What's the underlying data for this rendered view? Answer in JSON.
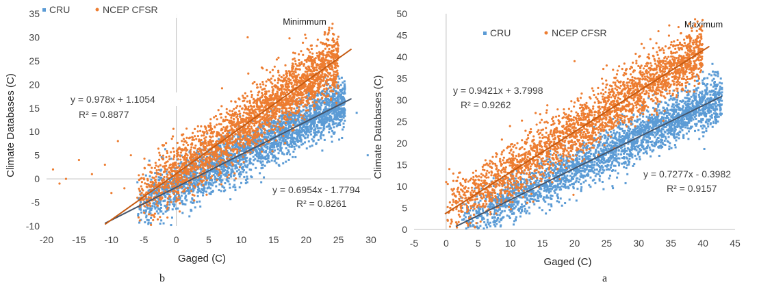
{
  "colors": {
    "cru": "#5b9bd5",
    "ncep": "#ed7d31",
    "cru_trend": "#44546a",
    "ncep_trend": "#c55a11",
    "axis": "#bfbfbf",
    "text": "#404040"
  },
  "chart_data": [
    {
      "type": "scatter",
      "panel_label": "b",
      "title": "Minimmum",
      "xlabel": "Gaged (C)",
      "ylabel": "Climate Databases (C)",
      "xlim": [
        -20,
        30
      ],
      "ylim": [
        -10,
        35
      ],
      "xticks": [
        -20,
        -15,
        -10,
        -5,
        0,
        5,
        10,
        15,
        20,
        25,
        30
      ],
      "yticks": [
        -10,
        -5,
        0,
        5,
        10,
        15,
        20,
        25,
        30,
        35
      ],
      "grid": false,
      "axes_cross_at_zero": true,
      "legend_position": "top-left",
      "series": [
        {
          "name": "CRU",
          "color": "#5b9bd5",
          "marker": "square",
          "trendline": {
            "slope": 0.6954,
            "intercept": -1.7794,
            "x_range": [
              -11,
              27
            ],
            "equation": "y = 0.6954x - 1.7794",
            "r2": "R² = 0.8261"
          },
          "approx_point_cloud": {
            "x_range": [
              -6,
              26
            ],
            "scatter_spread": 2.6
          },
          "sample_points": [
            [
              29.5,
              5
            ],
            [
              27.8,
              14
            ]
          ]
        },
        {
          "name": "NCEP CFSR",
          "color": "#ed7d31",
          "marker": "circle",
          "trendline": {
            "slope": 0.978,
            "intercept": 1.1054,
            "x_range": [
              -11,
              27
            ],
            "equation": "y = 0.978x + 1.1054",
            "r2": "R² = 0.8877"
          },
          "approx_point_cloud": {
            "x_range": [
              -6,
              25
            ],
            "scatter_spread": 3.2
          },
          "sample_points": [
            [
              -19,
              2
            ],
            [
              -17,
              0
            ],
            [
              -15,
              4
            ],
            [
              -13,
              1
            ],
            [
              -9,
              8
            ],
            [
              -8,
              -2
            ],
            [
              -7,
              5
            ],
            [
              -6,
              -4
            ],
            [
              11,
              30
            ],
            [
              -18,
              -1
            ],
            [
              -11,
              3
            ],
            [
              -10,
              -3
            ]
          ]
        }
      ]
    },
    {
      "type": "scatter",
      "panel_label": "a",
      "title": "Maximum",
      "xlabel": "Gaged (C)",
      "ylabel": "Climate Databases (C)",
      "xlim": [
        -5,
        45
      ],
      "ylim": [
        0,
        50
      ],
      "xticks": [
        -5,
        0,
        5,
        10,
        15,
        20,
        25,
        30,
        35,
        40,
        45
      ],
      "yticks": [
        0,
        5,
        10,
        15,
        20,
        25,
        30,
        35,
        40,
        45,
        50
      ],
      "grid": false,
      "axes_cross_at_zero": true,
      "legend_position": "top-left",
      "series": [
        {
          "name": "CRU",
          "color": "#5b9bd5",
          "marker": "square",
          "trendline": {
            "slope": 0.7277,
            "intercept": -0.3982,
            "x_range": [
              1.5,
              43
            ],
            "equation": "y = 0.7277x - 0.3982",
            "r2": "R² = 0.9157"
          },
          "approx_point_cloud": {
            "x_range": [
              2,
              43
            ],
            "scatter_spread": 2.8
          },
          "sample_points": [
            [
              38,
              32
            ],
            [
              36,
              30
            ]
          ]
        },
        {
          "name": "NCEP CFSR",
          "color": "#ed7d31",
          "marker": "circle",
          "trendline": {
            "slope": 0.9421,
            "intercept": 3.7998,
            "x_range": [
              -0.2,
              41
            ],
            "equation": "y = 0.9421x + 3.7998",
            "r2": "R² = 0.9262"
          },
          "approx_point_cloud": {
            "x_range": [
              0,
              40
            ],
            "scatter_spread": 3.3
          },
          "sample_points": [
            [
              0,
              11
            ],
            [
              0.5,
              14
            ],
            [
              1,
              9
            ],
            [
              20,
              39
            ],
            [
              25,
              38
            ],
            [
              26,
              37
            ]
          ]
        }
      ]
    }
  ]
}
